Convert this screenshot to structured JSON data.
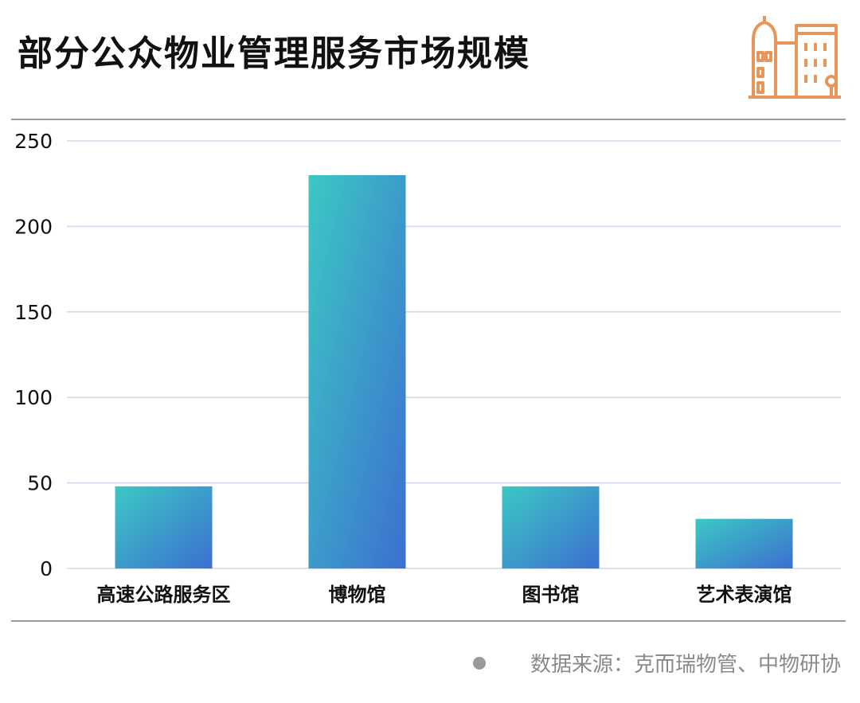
{
  "header": {
    "title": "部分公众物业管理服务市场规模",
    "icon": "building-icon",
    "icon_color": "#E8955A"
  },
  "chart_data": {
    "type": "bar",
    "title": "部分公众物业管理服务市场规模",
    "categories": [
      "高速公路服务区",
      "博物馆",
      "图书馆",
      "艺术表演馆"
    ],
    "values": [
      48,
      230,
      48,
      29
    ],
    "ylim": [
      0,
      250
    ],
    "yticks": [
      0,
      50,
      100,
      150,
      200,
      250
    ],
    "xlabel": "",
    "ylabel": "",
    "grid": true,
    "legend": "none",
    "bar_gradient": [
      "#3CC8C4",
      "#3C6FD0"
    ],
    "grid_color": "#D0D6EA",
    "frame_color": "#7A7A7A"
  },
  "footer": {
    "source": "数据来源：克而瑞物管、中物研协"
  }
}
